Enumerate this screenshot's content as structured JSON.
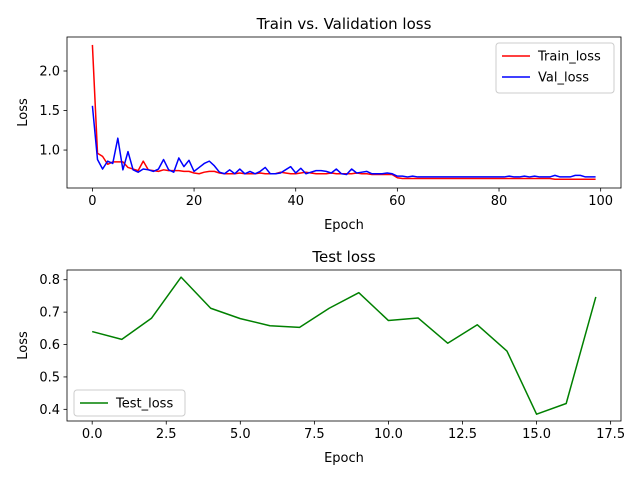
{
  "chart_data": [
    {
      "type": "line",
      "title": "Train vs. Validation loss",
      "xlabel": "Epoch",
      "ylabel": "Loss",
      "xlim": [
        -5,
        104
      ],
      "ylim": [
        0.52,
        2.43
      ],
      "xticks": [
        0,
        20,
        40,
        60,
        80,
        100
      ],
      "yticks": [
        1.0,
        1.5,
        2.0
      ],
      "ytick_labels": [
        "1.0",
        "1.5",
        "2.0"
      ],
      "legend_position": "upper right",
      "grid": false,
      "series": [
        {
          "name": "Train_loss",
          "color": "#ff0000",
          "x": [
            0,
            1,
            2,
            3,
            4,
            5,
            6,
            7,
            8,
            9,
            10,
            11,
            12,
            13,
            14,
            15,
            16,
            17,
            18,
            19,
            20,
            21,
            22,
            23,
            24,
            25,
            26,
            27,
            28,
            29,
            30,
            31,
            32,
            33,
            34,
            35,
            36,
            37,
            38,
            39,
            40,
            41,
            42,
            43,
            44,
            45,
            46,
            47,
            48,
            49,
            50,
            51,
            52,
            53,
            54,
            55,
            56,
            57,
            58,
            59,
            60,
            61,
            62,
            63,
            64,
            65,
            66,
            67,
            68,
            69,
            70,
            71,
            72,
            73,
            74,
            75,
            76,
            77,
            78,
            79,
            80,
            81,
            82,
            83,
            84,
            85,
            86,
            87,
            88,
            89,
            90,
            91,
            92,
            93,
            94,
            95,
            96,
            97,
            98,
            99
          ],
          "values": [
            2.33,
            0.96,
            0.92,
            0.82,
            0.85,
            0.85,
            0.85,
            0.78,
            0.76,
            0.74,
            0.86,
            0.75,
            0.74,
            0.73,
            0.75,
            0.74,
            0.74,
            0.74,
            0.73,
            0.73,
            0.71,
            0.7,
            0.72,
            0.73,
            0.73,
            0.71,
            0.7,
            0.7,
            0.7,
            0.71,
            0.7,
            0.7,
            0.7,
            0.71,
            0.7,
            0.7,
            0.7,
            0.72,
            0.71,
            0.7,
            0.7,
            0.71,
            0.72,
            0.71,
            0.7,
            0.7,
            0.7,
            0.71,
            0.7,
            0.7,
            0.7,
            0.7,
            0.71,
            0.7,
            0.7,
            0.69,
            0.69,
            0.69,
            0.69,
            0.69,
            0.65,
            0.64,
            0.64,
            0.64,
            0.64,
            0.64,
            0.64,
            0.64,
            0.64,
            0.64,
            0.64,
            0.64,
            0.64,
            0.64,
            0.64,
            0.64,
            0.64,
            0.64,
            0.64,
            0.64,
            0.64,
            0.64,
            0.64,
            0.64,
            0.64,
            0.64,
            0.64,
            0.64,
            0.64,
            0.64,
            0.64,
            0.63,
            0.63,
            0.63,
            0.63,
            0.63,
            0.63,
            0.63,
            0.63,
            0.63
          ]
        },
        {
          "name": "Val_loss",
          "color": "#0000ff",
          "x": [
            0,
            1,
            2,
            3,
            4,
            5,
            6,
            7,
            8,
            9,
            10,
            11,
            12,
            13,
            14,
            15,
            16,
            17,
            18,
            19,
            20,
            21,
            22,
            23,
            24,
            25,
            26,
            27,
            28,
            29,
            30,
            31,
            32,
            33,
            34,
            35,
            36,
            37,
            38,
            39,
            40,
            41,
            42,
            43,
            44,
            45,
            46,
            47,
            48,
            49,
            50,
            51,
            52,
            53,
            54,
            55,
            56,
            57,
            58,
            59,
            60,
            61,
            62,
            63,
            64,
            65,
            66,
            67,
            68,
            69,
            70,
            71,
            72,
            73,
            74,
            75,
            76,
            77,
            78,
            79,
            80,
            81,
            82,
            83,
            84,
            85,
            86,
            87,
            88,
            89,
            90,
            91,
            92,
            93,
            94,
            95,
            96,
            97,
            98,
            99
          ],
          "values": [
            1.56,
            0.88,
            0.76,
            0.86,
            0.83,
            1.15,
            0.75,
            0.98,
            0.75,
            0.72,
            0.76,
            0.75,
            0.73,
            0.76,
            0.88,
            0.75,
            0.72,
            0.9,
            0.79,
            0.87,
            0.73,
            0.78,
            0.83,
            0.86,
            0.8,
            0.72,
            0.7,
            0.75,
            0.7,
            0.76,
            0.7,
            0.73,
            0.7,
            0.73,
            0.78,
            0.7,
            0.7,
            0.71,
            0.75,
            0.79,
            0.71,
            0.77,
            0.7,
            0.72,
            0.74,
            0.74,
            0.73,
            0.71,
            0.76,
            0.7,
            0.69,
            0.76,
            0.71,
            0.72,
            0.73,
            0.7,
            0.7,
            0.7,
            0.71,
            0.7,
            0.67,
            0.67,
            0.66,
            0.67,
            0.66,
            0.66,
            0.66,
            0.66,
            0.66,
            0.66,
            0.66,
            0.66,
            0.66,
            0.66,
            0.66,
            0.66,
            0.66,
            0.66,
            0.66,
            0.66,
            0.66,
            0.66,
            0.67,
            0.66,
            0.66,
            0.67,
            0.66,
            0.67,
            0.66,
            0.66,
            0.66,
            0.68,
            0.66,
            0.66,
            0.66,
            0.68,
            0.68,
            0.66,
            0.66,
            0.66
          ]
        }
      ]
    },
    {
      "type": "line",
      "title": "Test loss",
      "xlabel": "Epoch",
      "ylabel": "Loss",
      "xlim": [
        -0.85,
        17.85
      ],
      "ylim": [
        0.364,
        0.83
      ],
      "xticks": [
        0,
        2.5,
        5,
        7.5,
        10,
        12.5,
        15,
        17.5
      ],
      "xtick_labels": [
        "0.0",
        "2.5",
        "5.0",
        "7.5",
        "10.0",
        "12.5",
        "15.0",
        "17.5"
      ],
      "yticks": [
        0.4,
        0.5,
        0.6,
        0.7,
        0.8
      ],
      "ytick_labels": [
        "0.4",
        "0.5",
        "0.6",
        "0.7",
        "0.8"
      ],
      "legend_position": "lower left",
      "grid": false,
      "series": [
        {
          "name": "Test_loss",
          "color": "#008000",
          "x": [
            0,
            1,
            2,
            3,
            4,
            5,
            6,
            7,
            8,
            9,
            10,
            11,
            12,
            13,
            14,
            15,
            16,
            17
          ],
          "values": [
            0.64,
            0.616,
            0.681,
            0.808,
            0.712,
            0.68,
            0.658,
            0.653,
            0.712,
            0.76,
            0.674,
            0.682,
            0.604,
            0.661,
            0.58,
            0.385,
            0.418,
            0.747
          ]
        }
      ]
    }
  ]
}
